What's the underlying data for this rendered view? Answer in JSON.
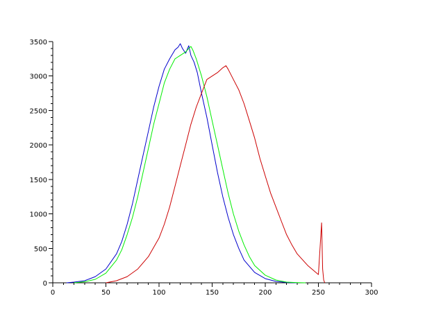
{
  "chart_data": {
    "type": "line",
    "xlim": [
      0,
      300
    ],
    "ylim": [
      0,
      3500
    ],
    "x_ticks": [
      0,
      50,
      100,
      150,
      200,
      250,
      300
    ],
    "y_ticks": [
      0,
      500,
      1000,
      1500,
      2000,
      2500,
      3000,
      3500
    ],
    "x_minor_step": 10,
    "y_minor_step": 100,
    "grid": false,
    "legend": "none",
    "series": [
      {
        "color": "#0000cc",
        "x": [
          13,
          20,
          30,
          40,
          50,
          60,
          65,
          70,
          75,
          80,
          85,
          90,
          95,
          100,
          105,
          110,
          115,
          118,
          120,
          122,
          125,
          128,
          130,
          133,
          136,
          140,
          145,
          150,
          155,
          160,
          165,
          170,
          175,
          180,
          190,
          200,
          210,
          220,
          230
        ],
        "y": [
          0,
          10,
          30,
          90,
          200,
          420,
          600,
          850,
          1150,
          1500,
          1850,
          2200,
          2550,
          2850,
          3100,
          3250,
          3380,
          3420,
          3470,
          3400,
          3330,
          3440,
          3300,
          3200,
          3050,
          2750,
          2400,
          2000,
          1600,
          1250,
          950,
          700,
          500,
          330,
          150,
          60,
          20,
          5,
          0
        ]
      },
      {
        "color": "#00ee00",
        "x": [
          20,
          30,
          40,
          50,
          60,
          65,
          70,
          75,
          80,
          85,
          90,
          95,
          100,
          105,
          110,
          115,
          120,
          125,
          128,
          130,
          132,
          135,
          140,
          145,
          150,
          155,
          160,
          165,
          170,
          175,
          180,
          185,
          190,
          200,
          210,
          220,
          230,
          238
        ],
        "y": [
          0,
          15,
          50,
          140,
          330,
          480,
          700,
          950,
          1250,
          1600,
          1950,
          2300,
          2600,
          2900,
          3100,
          3250,
          3300,
          3350,
          3400,
          3430,
          3370,
          3250,
          3000,
          2700,
          2350,
          2000,
          1650,
          1300,
          1000,
          750,
          550,
          380,
          250,
          110,
          40,
          10,
          3,
          0
        ]
      },
      {
        "color": "#cc0000",
        "x": [
          50,
          60,
          70,
          80,
          90,
          100,
          105,
          110,
          115,
          120,
          125,
          130,
          135,
          140,
          145,
          150,
          155,
          160,
          163,
          165,
          170,
          175,
          180,
          185,
          190,
          195,
          200,
          205,
          210,
          215,
          220,
          225,
          230,
          240,
          250,
          253,
          254,
          255,
          256
        ],
        "y": [
          0,
          30,
          90,
          200,
          380,
          650,
          850,
          1100,
          1400,
          1700,
          2000,
          2300,
          2550,
          2750,
          2950,
          3000,
          3050,
          3120,
          3150,
          3100,
          2950,
          2800,
          2600,
          2350,
          2100,
          1800,
          1550,
          1300,
          1100,
          900,
          700,
          550,
          420,
          250,
          120,
          870,
          200,
          40,
          0
        ]
      }
    ]
  }
}
